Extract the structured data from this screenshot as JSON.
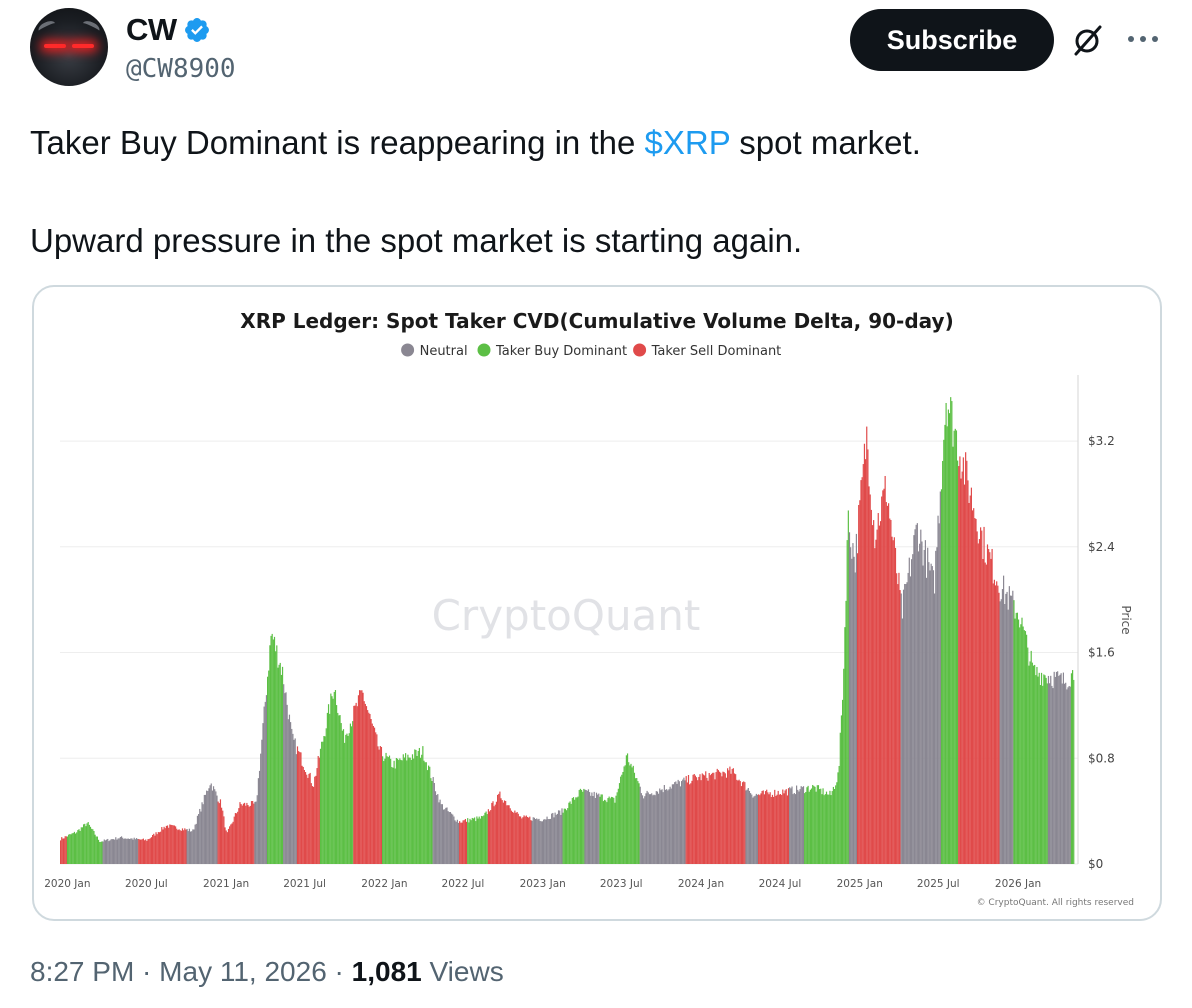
{
  "author": {
    "name": "CW",
    "handle": "@CW8900",
    "verified": true,
    "avatar": "red-eyed-bull-avatar"
  },
  "header": {
    "subscribe_label": "Subscribe",
    "grok_icon": "grok-slash-icon",
    "more_icon": "more-dots-icon"
  },
  "tweet": {
    "line1_before": "Taker Buy Dominant is reappearing in the ",
    "cashtag": "$XRP",
    "line1_after": " spot market.",
    "line2": "Upward pressure in the spot market is starting again."
  },
  "footer": {
    "time": "8:27 PM",
    "sep1": " · ",
    "date": "May 11, 2026",
    "sep2": " · ",
    "views_count": "1,081",
    "views_label": " Views"
  },
  "chart_data": {
    "type": "bar",
    "title": "XRP Ledger: Spot Taker CVD(Cumulative Volume Delta, 90-day)",
    "legend": [
      {
        "name": "Neutral",
        "color": "#8a8792"
      },
      {
        "name": "Taker Buy Dominant",
        "color": "#5cbf45"
      },
      {
        "name": "Taker Sell Dominant",
        "color": "#e04a4a"
      }
    ],
    "legend_position": "top-center",
    "watermark": "CryptoQuant",
    "credit": "© CryptoQuant. All rights reserved",
    "ylabel": "Price",
    "ylim": [
      0,
      3.7
    ],
    "y_ticks": [
      {
        "value": 0,
        "label": "$0"
      },
      {
        "value": 0.8,
        "label": "$0.8"
      },
      {
        "value": 1.6,
        "label": "$1.6"
      },
      {
        "value": 2.4,
        "label": "$2.4"
      },
      {
        "value": 3.2,
        "label": "$3.2"
      }
    ],
    "x_ticks": [
      "2020 Jan",
      "2020 Jul",
      "2021 Jan",
      "2021 Jul",
      "2022 Jan",
      "2022 Jul",
      "2023 Jan",
      "2023 Jul",
      "2024 Jan",
      "2024 Jul",
      "2025 Jan",
      "2025 Jul",
      "2026 Jan"
    ],
    "x_range": [
      "2019-12-15",
      "2026-05-10"
    ],
    "grid": true,
    "price_keypoints": [
      {
        "d": "2019-12-15",
        "p": 0.19
      },
      {
        "d": "2020-01-20",
        "p": 0.24
      },
      {
        "d": "2020-02-15",
        "p": 0.31
      },
      {
        "d": "2020-03-15",
        "p": 0.17
      },
      {
        "d": "2020-05-01",
        "p": 0.2
      },
      {
        "d": "2020-07-01",
        "p": 0.18
      },
      {
        "d": "2020-08-15",
        "p": 0.29
      },
      {
        "d": "2020-10-15",
        "p": 0.25
      },
      {
        "d": "2020-11-24",
        "p": 0.62
      },
      {
        "d": "2020-12-20",
        "p": 0.45
      },
      {
        "d": "2021-01-01",
        "p": 0.22
      },
      {
        "d": "2021-02-01",
        "p": 0.45
      },
      {
        "d": "2021-03-10",
        "p": 0.45
      },
      {
        "d": "2021-04-14",
        "p": 1.75
      },
      {
        "d": "2021-05-10",
        "p": 1.45
      },
      {
        "d": "2021-06-01",
        "p": 0.95
      },
      {
        "d": "2021-07-20",
        "p": 0.6
      },
      {
        "d": "2021-09-06",
        "p": 1.35
      },
      {
        "d": "2021-09-28",
        "p": 0.95
      },
      {
        "d": "2021-11-10",
        "p": 1.3
      },
      {
        "d": "2021-12-20",
        "p": 0.85
      },
      {
        "d": "2022-01-20",
        "p": 0.75
      },
      {
        "d": "2022-02-15",
        "p": 0.8
      },
      {
        "d": "2022-03-30",
        "p": 0.85
      },
      {
        "d": "2022-05-10",
        "p": 0.45
      },
      {
        "d": "2022-06-20",
        "p": 0.32
      },
      {
        "d": "2022-08-15",
        "p": 0.35
      },
      {
        "d": "2022-09-23",
        "p": 0.52
      },
      {
        "d": "2022-11-10",
        "p": 0.35
      },
      {
        "d": "2022-12-31",
        "p": 0.34
      },
      {
        "d": "2023-02-15",
        "p": 0.4
      },
      {
        "d": "2023-03-29",
        "p": 0.55
      },
      {
        "d": "2023-06-15",
        "p": 0.48
      },
      {
        "d": "2023-07-13",
        "p": 0.82
      },
      {
        "d": "2023-08-20",
        "p": 0.52
      },
      {
        "d": "2023-10-30",
        "p": 0.6
      },
      {
        "d": "2023-12-15",
        "p": 0.65
      },
      {
        "d": "2024-03-11",
        "p": 0.7
      },
      {
        "d": "2024-05-01",
        "p": 0.52
      },
      {
        "d": "2024-07-15",
        "p": 0.55
      },
      {
        "d": "2024-09-15",
        "p": 0.58
      },
      {
        "d": "2024-10-25",
        "p": 0.52
      },
      {
        "d": "2024-11-12",
        "p": 0.68
      },
      {
        "d": "2024-11-24",
        "p": 1.5
      },
      {
        "d": "2024-12-03",
        "p": 2.6
      },
      {
        "d": "2024-12-20",
        "p": 2.3
      },
      {
        "d": "2025-01-16",
        "p": 3.25
      },
      {
        "d": "2025-02-03",
        "p": 2.5
      },
      {
        "d": "2025-03-02",
        "p": 2.85
      },
      {
        "d": "2025-04-07",
        "p": 1.9
      },
      {
        "d": "2025-05-12",
        "p": 2.55
      },
      {
        "d": "2025-06-20",
        "p": 2.1
      },
      {
        "d": "2025-07-18",
        "p": 3.55
      },
      {
        "d": "2025-08-20",
        "p": 3.1
      },
      {
        "d": "2025-10-10",
        "p": 2.45
      },
      {
        "d": "2025-11-20",
        "p": 2.1
      },
      {
        "d": "2026-01-01",
        "p": 1.9
      },
      {
        "d": "2026-02-05",
        "p": 1.45
      },
      {
        "d": "2026-03-15",
        "p": 1.42
      },
      {
        "d": "2026-04-15",
        "p": 1.38
      },
      {
        "d": "2026-05-10",
        "p": 1.45
      }
    ],
    "regimes": [
      {
        "from": "2019-12-15",
        "to": "2019-12-29",
        "state": "Taker Sell Dominant"
      },
      {
        "from": "2019-12-29",
        "to": "2020-03-20",
        "state": "Taker Buy Dominant"
      },
      {
        "from": "2020-03-20",
        "to": "2020-06-10",
        "state": "Neutral"
      },
      {
        "from": "2020-06-10",
        "to": "2020-09-30",
        "state": "Taker Sell Dominant"
      },
      {
        "from": "2020-09-30",
        "to": "2020-11-12",
        "state": "Neutral"
      },
      {
        "from": "2020-11-12",
        "to": "2020-12-10",
        "state": "Neutral"
      },
      {
        "from": "2020-12-10",
        "to": "2021-03-05",
        "state": "Taker Sell Dominant"
      },
      {
        "from": "2021-03-05",
        "to": "2021-04-05",
        "state": "Neutral"
      },
      {
        "from": "2021-04-05",
        "to": "2021-05-10",
        "state": "Taker Buy Dominant"
      },
      {
        "from": "2021-05-10",
        "to": "2021-06-12",
        "state": "Neutral"
      },
      {
        "from": "2021-06-12",
        "to": "2021-08-05",
        "state": "Taker Sell Dominant"
      },
      {
        "from": "2021-08-05",
        "to": "2021-10-20",
        "state": "Taker Buy Dominant"
      },
      {
        "from": "2021-10-20",
        "to": "2021-12-25",
        "state": "Taker Sell Dominant"
      },
      {
        "from": "2021-12-25",
        "to": "2022-04-20",
        "state": "Taker Buy Dominant"
      },
      {
        "from": "2022-04-20",
        "to": "2022-06-20",
        "state": "Neutral"
      },
      {
        "from": "2022-06-20",
        "to": "2022-07-10",
        "state": "Taker Sell Dominant"
      },
      {
        "from": "2022-07-10",
        "to": "2022-08-25",
        "state": "Taker Buy Dominant"
      },
      {
        "from": "2022-08-25",
        "to": "2022-12-05",
        "state": "Taker Sell Dominant"
      },
      {
        "from": "2022-12-05",
        "to": "2023-02-15",
        "state": "Neutral"
      },
      {
        "from": "2023-02-15",
        "to": "2023-04-05",
        "state": "Taker Buy Dominant"
      },
      {
        "from": "2023-04-05",
        "to": "2023-05-10",
        "state": "Neutral"
      },
      {
        "from": "2023-05-10",
        "to": "2023-08-10",
        "state": "Taker Buy Dominant"
      },
      {
        "from": "2023-08-10",
        "to": "2023-11-25",
        "state": "Neutral"
      },
      {
        "from": "2023-11-25",
        "to": "2024-04-10",
        "state": "Taker Sell Dominant"
      },
      {
        "from": "2024-04-10",
        "to": "2024-05-10",
        "state": "Neutral"
      },
      {
        "from": "2024-05-10",
        "to": "2024-07-20",
        "state": "Taker Sell Dominant"
      },
      {
        "from": "2024-07-20",
        "to": "2024-08-25",
        "state": "Neutral"
      },
      {
        "from": "2024-08-25",
        "to": "2024-12-05",
        "state": "Taker Buy Dominant"
      },
      {
        "from": "2024-12-05",
        "to": "2024-12-25",
        "state": "Neutral"
      },
      {
        "from": "2024-12-25",
        "to": "2025-04-05",
        "state": "Taker Sell Dominant"
      },
      {
        "from": "2025-04-05",
        "to": "2025-07-05",
        "state": "Neutral"
      },
      {
        "from": "2025-07-05",
        "to": "2025-08-15",
        "state": "Taker Buy Dominant"
      },
      {
        "from": "2025-08-15",
        "to": "2025-11-18",
        "state": "Taker Sell Dominant"
      },
      {
        "from": "2025-11-18",
        "to": "2025-12-20",
        "state": "Neutral"
      },
      {
        "from": "2025-12-20",
        "to": "2026-03-10",
        "state": "Taker Buy Dominant"
      },
      {
        "from": "2026-03-10",
        "to": "2026-05-02",
        "state": "Neutral"
      },
      {
        "from": "2026-05-02",
        "to": "2026-05-10",
        "state": "Taker Buy Dominant"
      }
    ]
  }
}
